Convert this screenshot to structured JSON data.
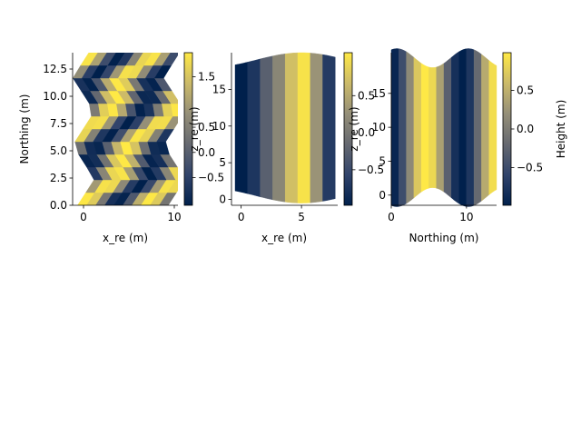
{
  "colormap": [
    "#00204c",
    "#31446b",
    "#666970",
    "#958f78",
    "#cbba69",
    "#ffe945"
  ],
  "chart_data": [
    {
      "type": "heatmap",
      "description": "zigzag-sheared pcolormesh with colorbar",
      "xlabel": "x_re (m)",
      "ylabel": "Northing (m)",
      "xlim": [
        -1.2,
        10.4
      ],
      "ylim": [
        0,
        14
      ],
      "x_ticks": [
        0,
        10
      ],
      "y_ticks": [
        0.0,
        2.5,
        5.0,
        7.5,
        10.0,
        12.5
      ],
      "grid": false,
      "colorbar": {
        "label": "z_re (m)",
        "ticks": [
          -0.5,
          0.0,
          0.5,
          1.5
        ],
        "range": [
          -1.05,
          1.98
        ]
      },
      "bands": 12,
      "columns": 10
    },
    {
      "type": "heatmap",
      "description": "vertical colour bands with wavy top and bottom edges",
      "xlabel": "x_re (m)",
      "ylabel": "",
      "xlim": [
        -0.8,
        8.0
      ],
      "ylim": [
        -0.8,
        20
      ],
      "x_ticks": [
        0,
        5
      ],
      "y_ticks": [
        0,
        5,
        10,
        15
      ],
      "grid": false,
      "colorbar": {
        "label": "z_re (m)",
        "ticks": [
          -0.5,
          0.0,
          0.5
        ],
        "range": [
          -0.98,
          1.08
        ]
      },
      "columns": 8
    },
    {
      "type": "heatmap",
      "description": "vertical colour bands with wavy top and bottom edges",
      "xlabel": "Northing (m)",
      "ylabel": "",
      "xlim": [
        0,
        14
      ],
      "ylim": [
        -1.5,
        21
      ],
      "x_ticks": [
        0,
        10
      ],
      "y_ticks": [
        0,
        5,
        10,
        15
      ],
      "grid": false,
      "colorbar": {
        "label": "Height (m)",
        "ticks": [
          -0.5,
          0.0,
          0.5
        ],
        "range": [
          -0.99,
          0.99
        ]
      },
      "columns": 14
    }
  ]
}
